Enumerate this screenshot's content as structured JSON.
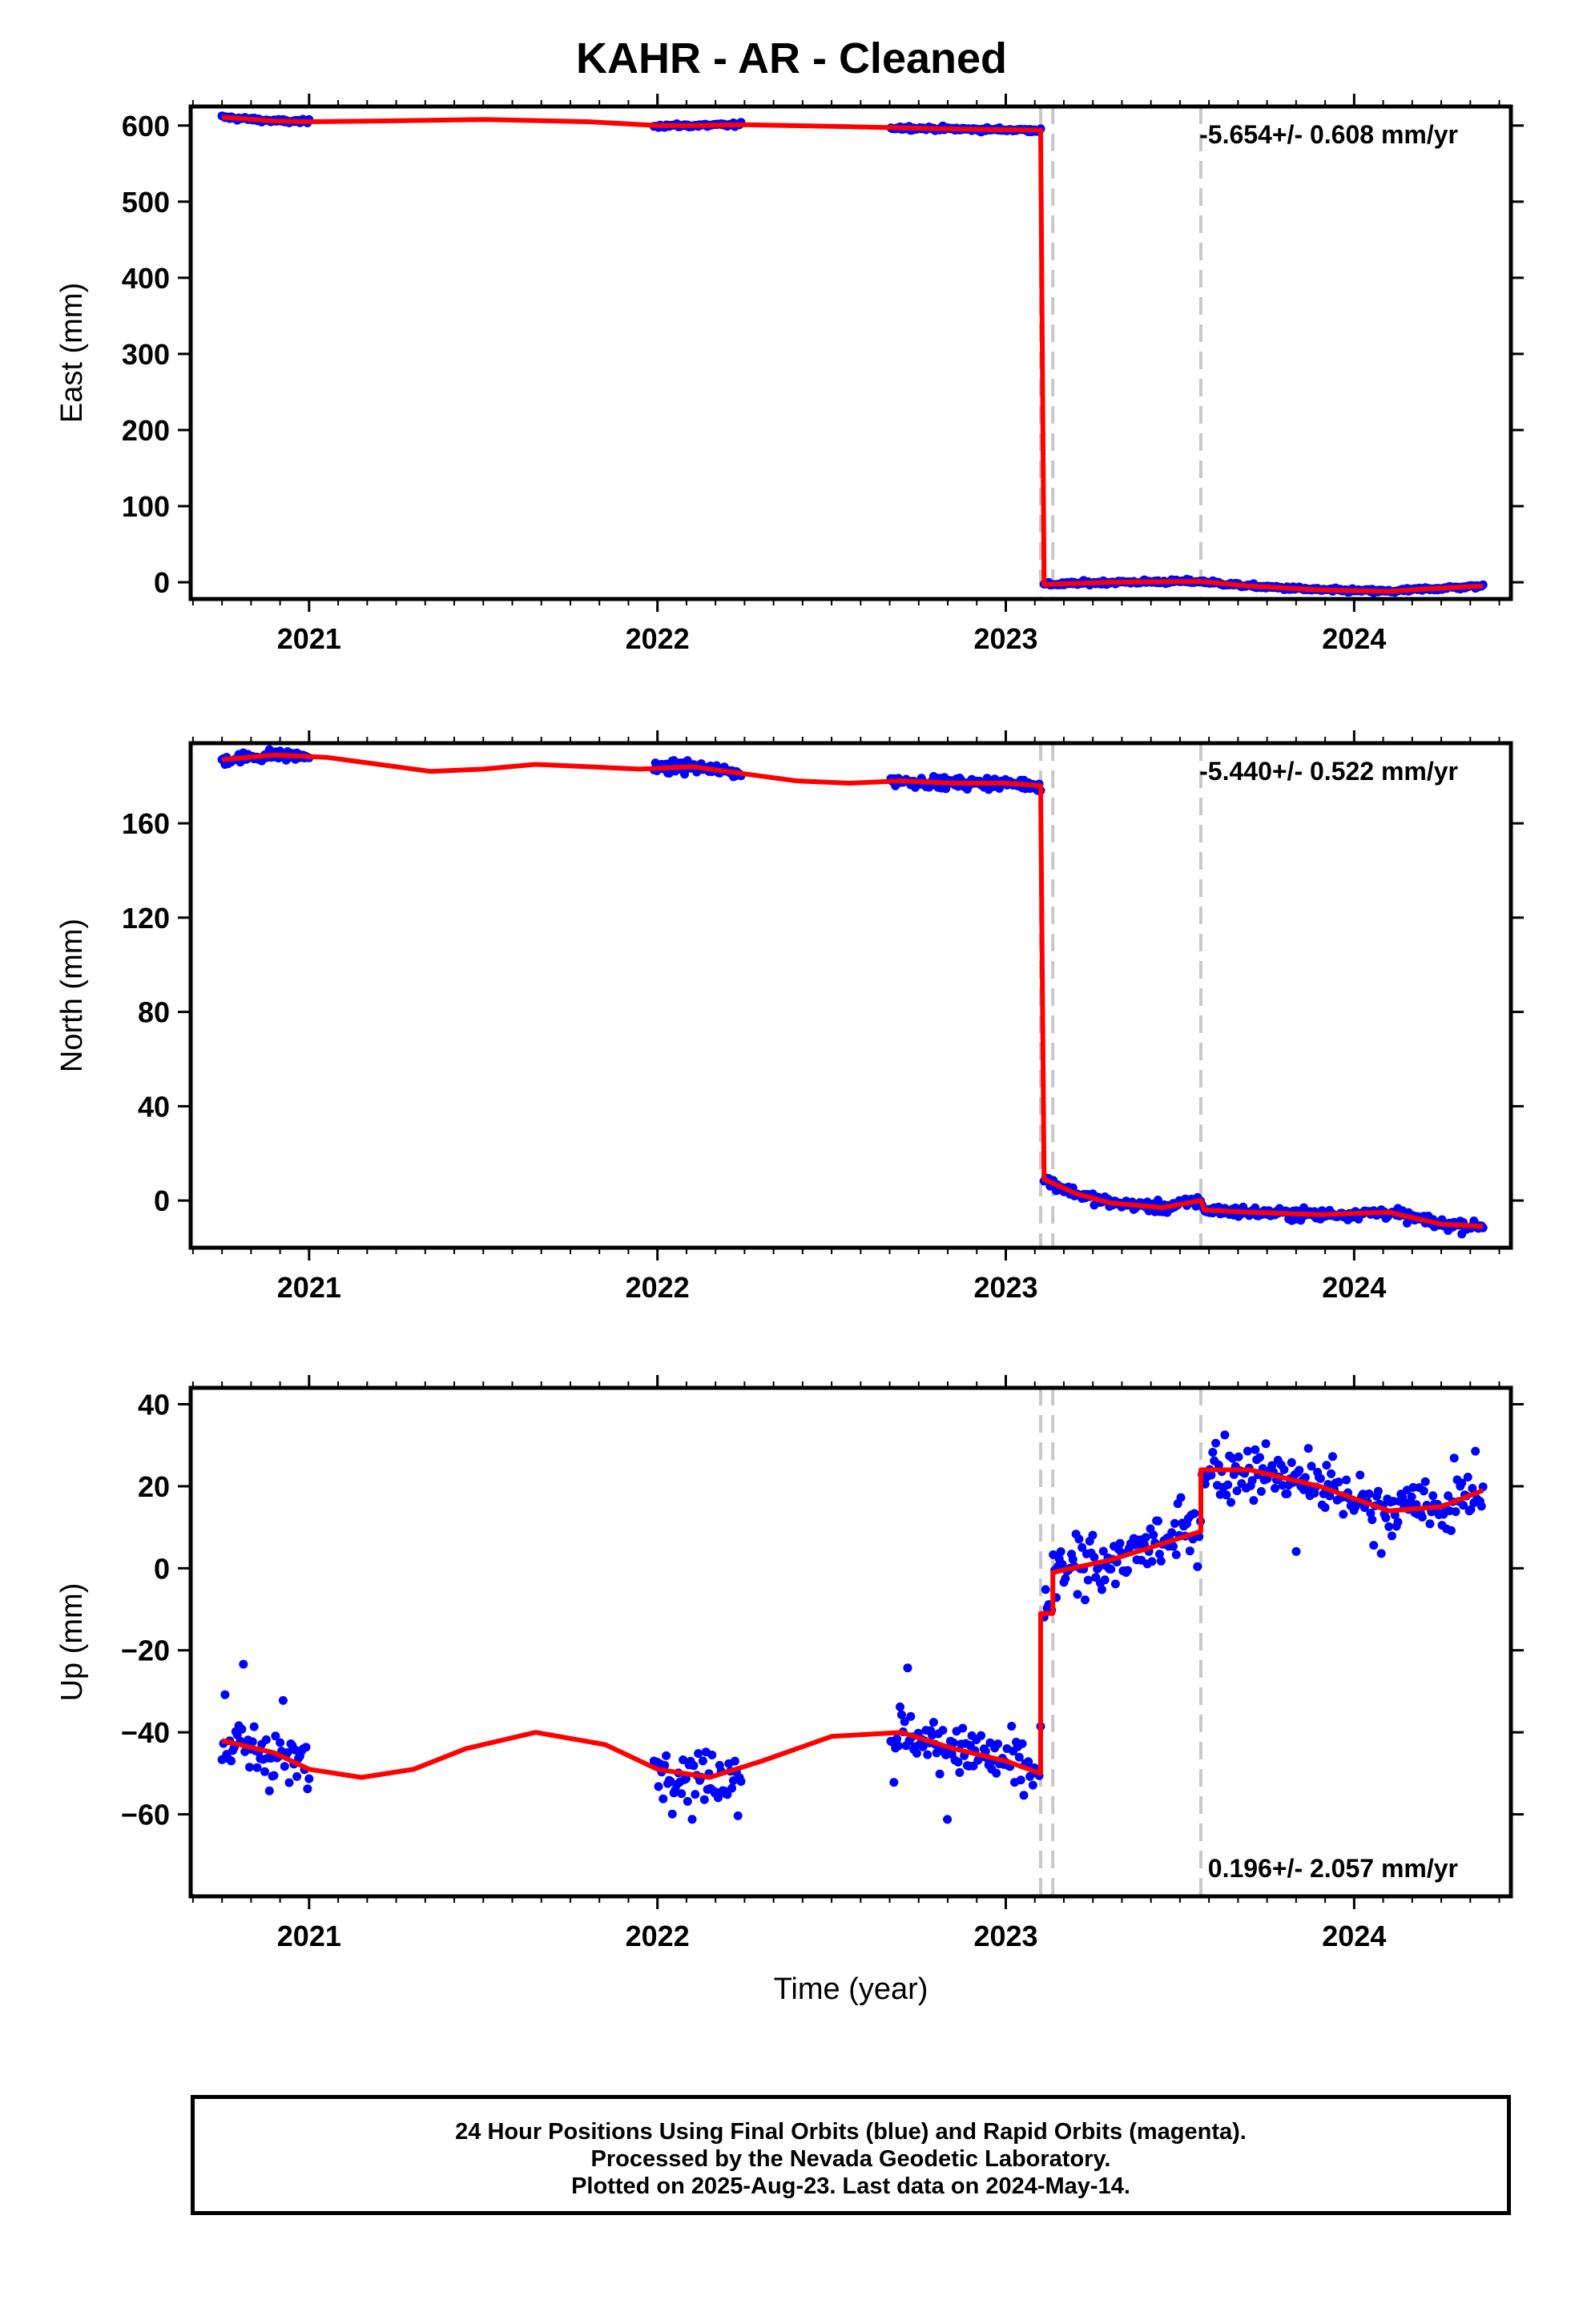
{
  "title": "KAHR  - AR - Cleaned",
  "colors": {
    "data": "#0000ff",
    "model": "#ff0000",
    "breaks": "#c8c8c8",
    "axis": "#000000"
  },
  "footer": {
    "line1": "24 Hour Positions Using Final Orbits (blue) and Rapid Orbits (magenta).",
    "line2": "Processed by the Nevada Geodetic Laboratory.",
    "line3": "Plotted on 2025-Aug-23. Last data on 2024-May-14."
  },
  "chart_data": [
    {
      "type": "scatter",
      "panel": "east",
      "ylabel": "East (mm)",
      "xlabel": "",
      "xlim": [
        2020.66,
        2024.45
      ],
      "ylim": [
        -22,
        625
      ],
      "yticks": [
        0,
        100,
        200,
        300,
        400,
        500,
        600
      ],
      "xticks": [
        2021,
        2022,
        2023,
        2024
      ],
      "grid": false,
      "rate_label": "-5.654+/- 0.608 mm/yr",
      "rate_position": "top-right",
      "breaks": [
        2023.1,
        2023.135,
        2023.56
      ],
      "segments": [
        [
          2020.75,
          2021.0
        ],
        [
          2021.99,
          2022.24
        ],
        [
          2022.67,
          2023.1
        ],
        [
          2023.11,
          2024.37
        ]
      ],
      "model": {
        "x": [
          2020.75,
          2020.9,
          2021.0,
          2021.2,
          2021.5,
          2021.8,
          2022.0,
          2022.1,
          2022.25,
          2022.5,
          2022.7,
          2022.9,
          2023.1,
          2023.11,
          2023.3,
          2023.5,
          2023.56,
          2023.7,
          2023.9,
          2024.1,
          2024.2,
          2024.37
        ],
        "y": [
          611,
          606,
          605,
          606,
          608,
          605,
          600,
          600,
          601,
          599,
          597,
          595,
          594,
          -3,
          0,
          1,
          1,
          -5,
          -10,
          -12,
          -9,
          -5
        ]
      }
    },
    {
      "type": "scatter",
      "panel": "north",
      "ylabel": "North (mm)",
      "xlabel": "",
      "xlim": [
        2020.66,
        2024.45
      ],
      "ylim": [
        -20,
        194
      ],
      "yticks": [
        0,
        40,
        80,
        120,
        160
      ],
      "xticks": [
        2021,
        2022,
        2023,
        2024
      ],
      "grid": false,
      "rate_label": "-5.440+/- 0.522 mm/yr",
      "rate_position": "top-right",
      "breaks": [
        2023.1,
        2023.135,
        2023.56
      ],
      "segments": [
        [
          2020.75,
          2021.0
        ],
        [
          2021.99,
          2022.24
        ],
        [
          2022.67,
          2023.1
        ],
        [
          2023.11,
          2024.37
        ]
      ],
      "model": {
        "x": [
          2020.75,
          2020.9,
          2021.05,
          2021.2,
          2021.35,
          2021.5,
          2021.65,
          2021.8,
          2021.95,
          2022.1,
          2022.25,
          2022.4,
          2022.55,
          2022.7,
          2022.85,
          2023.0,
          2023.1,
          2023.11,
          2023.2,
          2023.3,
          2023.45,
          2023.56,
          2023.57,
          2023.7,
          2023.9,
          2024.1,
          2024.25,
          2024.37
        ],
        "y": [
          187,
          189,
          188,
          185,
          182,
          183,
          185,
          184,
          183,
          184,
          181,
          178,
          177,
          178,
          177,
          177,
          176,
          9,
          3,
          -1,
          -3,
          0,
          -4,
          -5,
          -6,
          -5,
          -10,
          -11
        ]
      }
    },
    {
      "type": "scatter",
      "panel": "up",
      "ylabel": "Up (mm)",
      "xlabel": "Time (year)",
      "xlim": [
        2020.66,
        2024.45
      ],
      "ylim": [
        -80,
        44
      ],
      "yticks": [
        -60,
        -40,
        -20,
        0,
        20,
        40
      ],
      "xticks": [
        2021,
        2022,
        2023,
        2024
      ],
      "grid": false,
      "rate_label": "0.196+/- 2.057 mm/yr",
      "rate_position": "bottom-right",
      "breaks": [
        2023.1,
        2023.135,
        2023.56
      ],
      "segments": [
        [
          2020.75,
          2021.0
        ],
        [
          2021.99,
          2022.24
        ],
        [
          2022.67,
          2023.1
        ],
        [
          2023.11,
          2024.37
        ]
      ],
      "model": {
        "x": [
          2020.75,
          2020.9,
          2021.0,
          2021.15,
          2021.3,
          2021.45,
          2021.65,
          2021.85,
          2022.0,
          2022.15,
          2022.3,
          2022.5,
          2022.7,
          2022.85,
          2023.0,
          2023.1,
          2023.1,
          2023.135,
          2023.135,
          2023.3,
          2023.45,
          2023.56,
          2023.56,
          2023.7,
          2023.9,
          2024.1,
          2024.25,
          2024.37
        ],
        "y": [
          -42,
          -45,
          -49,
          -51,
          -49,
          -44,
          -40,
          -43,
          -49,
          -51,
          -47,
          -41,
          -40,
          -44,
          -47,
          -50,
          -11,
          -11,
          -1,
          2,
          6,
          9,
          24,
          24,
          20,
          14,
          15,
          19
        ]
      }
    }
  ]
}
